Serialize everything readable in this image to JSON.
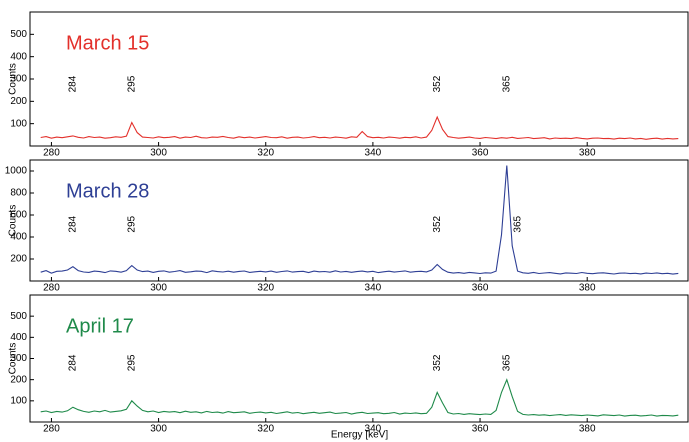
{
  "chart_data": [
    {
      "type": "line",
      "title": "March 15",
      "ylabel": "Counts",
      "color": "#e3302b",
      "x": [
        278,
        279,
        280,
        281,
        282,
        283,
        284,
        285,
        286,
        287,
        288,
        289,
        290,
        291,
        292,
        293,
        294,
        295,
        296,
        297,
        298,
        299,
        300,
        301,
        302,
        303,
        304,
        305,
        306,
        307,
        308,
        309,
        310,
        311,
        312,
        313,
        314,
        315,
        316,
        317,
        318,
        319,
        320,
        321,
        322,
        323,
        324,
        325,
        326,
        327,
        328,
        329,
        330,
        331,
        332,
        333,
        334,
        335,
        336,
        337,
        338,
        339,
        340,
        341,
        342,
        343,
        344,
        345,
        346,
        347,
        348,
        349,
        350,
        351,
        352,
        353,
        354,
        355,
        356,
        357,
        358,
        359,
        360,
        361,
        362,
        363,
        364,
        365,
        366,
        367,
        368,
        369,
        370,
        371,
        372,
        373,
        374,
        375,
        376,
        377,
        378,
        379,
        380,
        381,
        382,
        383,
        384,
        385,
        386,
        387,
        388,
        389,
        390,
        391,
        392,
        393,
        394,
        395,
        396,
        397
      ],
      "values": [
        38,
        42,
        35,
        40,
        37,
        41,
        45,
        39,
        36,
        42,
        38,
        40,
        35,
        37,
        41,
        39,
        44,
        105,
        60,
        40,
        38,
        36,
        41,
        37,
        39,
        42,
        35,
        40,
        38,
        44,
        37,
        36,
        40,
        39,
        43,
        38,
        35,
        41,
        37,
        40,
        36,
        39,
        42,
        38,
        37,
        41,
        35,
        39,
        40,
        36,
        38,
        42,
        37,
        39,
        36,
        40,
        38,
        35,
        41,
        39,
        65,
        42,
        37,
        39,
        36,
        40,
        38,
        35,
        39,
        37,
        41,
        36,
        40,
        70,
        130,
        75,
        42,
        38,
        35,
        37,
        40,
        36,
        34,
        38,
        36,
        33,
        37,
        35,
        39,
        34,
        36,
        38,
        33,
        35,
        37,
        32,
        36,
        34,
        35,
        33,
        37,
        34,
        32,
        35,
        36,
        33,
        34,
        31,
        35,
        33,
        36,
        32,
        34,
        30,
        33,
        35,
        31,
        34,
        32,
        33
      ],
      "xlim": [
        276,
        399
      ],
      "xticks": [
        280,
        300,
        320,
        340,
        360,
        380
      ],
      "ylim": [
        0,
        600
      ],
      "yticks": [
        100,
        200,
        300,
        400,
        500
      ],
      "peak_labels": [
        284,
        295,
        352,
        365
      ]
    },
    {
      "type": "line",
      "title": "March 28",
      "ylabel": "Counts",
      "color": "#2e3f95",
      "x": [
        278,
        279,
        280,
        281,
        282,
        283,
        284,
        285,
        286,
        287,
        288,
        289,
        290,
        291,
        292,
        293,
        294,
        295,
        296,
        297,
        298,
        299,
        300,
        301,
        302,
        303,
        304,
        305,
        306,
        307,
        308,
        309,
        310,
        311,
        312,
        313,
        314,
        315,
        316,
        317,
        318,
        319,
        320,
        321,
        322,
        323,
        324,
        325,
        326,
        327,
        328,
        329,
        330,
        331,
        332,
        333,
        334,
        335,
        336,
        337,
        338,
        339,
        340,
        341,
        342,
        343,
        344,
        345,
        346,
        347,
        348,
        349,
        350,
        351,
        352,
        353,
        354,
        355,
        356,
        357,
        358,
        359,
        360,
        361,
        362,
        363,
        364,
        365,
        366,
        367,
        368,
        369,
        370,
        371,
        372,
        373,
        374,
        375,
        376,
        377,
        378,
        379,
        380,
        381,
        382,
        383,
        384,
        385,
        386,
        387,
        388,
        389,
        390,
        391,
        392,
        393,
        394,
        395,
        396,
        397
      ],
      "values": [
        80,
        95,
        72,
        88,
        90,
        100,
        130,
        95,
        82,
        78,
        90,
        85,
        76,
        92,
        88,
        80,
        95,
        140,
        100,
        85,
        90,
        78,
        88,
        92,
        80,
        86,
        95,
        79,
        84,
        90,
        88,
        76,
        93,
        85,
        82,
        89,
        80,
        87,
        91,
        78,
        84,
        88,
        83,
        90,
        79,
        86,
        92,
        81,
        85,
        88,
        77,
        90,
        84,
        86,
        80,
        93,
        82,
        87,
        79,
        85,
        90,
        83,
        88,
        76,
        84,
        89,
        81,
        86,
        92,
        80,
        85,
        88,
        83,
        100,
        150,
        105,
        80,
        72,
        76,
        70,
        78,
        74,
        68,
        75,
        72,
        90,
        420,
        1050,
        320,
        90,
        75,
        70,
        78,
        68,
        73,
        76,
        70,
        65,
        74,
        71,
        68,
        77,
        70,
        66,
        72,
        75,
        69,
        64,
        71,
        73,
        67,
        70,
        65,
        72,
        68,
        74,
        66,
        70,
        63,
        69
      ],
      "xlim": [
        276,
        399
      ],
      "xticks": [
        280,
        300,
        320,
        340,
        360,
        380
      ],
      "ylim": [
        0,
        1100
      ],
      "yticks": [
        200,
        400,
        600,
        800,
        1000
      ],
      "peak_labels": [
        284,
        295,
        352,
        365
      ]
    },
    {
      "type": "line",
      "title": "April 17",
      "ylabel": "Counts",
      "xlabel": "Energy [keV]",
      "color": "#1f8a4a",
      "x": [
        278,
        279,
        280,
        281,
        282,
        283,
        284,
        285,
        286,
        287,
        288,
        289,
        290,
        291,
        292,
        293,
        294,
        295,
        296,
        297,
        298,
        299,
        300,
        301,
        302,
        303,
        304,
        305,
        306,
        307,
        308,
        309,
        310,
        311,
        312,
        313,
        314,
        315,
        316,
        317,
        318,
        319,
        320,
        321,
        322,
        323,
        324,
        325,
        326,
        327,
        328,
        329,
        330,
        331,
        332,
        333,
        334,
        335,
        336,
        337,
        338,
        339,
        340,
        341,
        342,
        343,
        344,
        345,
        346,
        347,
        348,
        349,
        350,
        351,
        352,
        353,
        354,
        355,
        356,
        357,
        358,
        359,
        360,
        361,
        362,
        363,
        364,
        365,
        366,
        367,
        368,
        369,
        370,
        371,
        372,
        373,
        374,
        375,
        376,
        377,
        378,
        379,
        380,
        381,
        382,
        383,
        384,
        385,
        386,
        387,
        388,
        389,
        390,
        391,
        392,
        393,
        394,
        395,
        396,
        397
      ],
      "values": [
        48,
        52,
        45,
        50,
        47,
        53,
        70,
        58,
        50,
        46,
        52,
        48,
        55,
        47,
        50,
        53,
        60,
        100,
        75,
        55,
        48,
        52,
        45,
        50,
        47,
        49,
        44,
        51,
        46,
        48,
        43,
        50,
        45,
        47,
        42,
        49,
        44,
        46,
        48,
        41,
        45,
        47,
        43,
        46,
        40,
        44,
        48,
        42,
        45,
        39,
        43,
        46,
        41,
        44,
        47,
        40,
        42,
        45,
        38,
        43,
        46,
        40,
        42,
        44,
        39,
        41,
        45,
        38,
        42,
        40,
        43,
        39,
        41,
        70,
        140,
        90,
        45,
        38,
        40,
        36,
        39,
        37,
        35,
        38,
        36,
        55,
        140,
        200,
        120,
        50,
        36,
        33,
        35,
        32,
        34,
        30,
        33,
        35,
        31,
        34,
        32,
        30,
        33,
        31,
        29,
        34,
        32,
        30,
        33,
        28,
        31,
        32,
        29,
        30,
        33,
        28,
        31,
        30,
        29,
        32
      ],
      "xlim": [
        276,
        399
      ],
      "xticks": [
        280,
        300,
        320,
        340,
        360,
        380
      ],
      "ylim": [
        0,
        600
      ],
      "yticks": [
        100,
        200,
        300,
        400,
        500
      ],
      "peak_labels": [
        284,
        295,
        352,
        365
      ]
    }
  ]
}
